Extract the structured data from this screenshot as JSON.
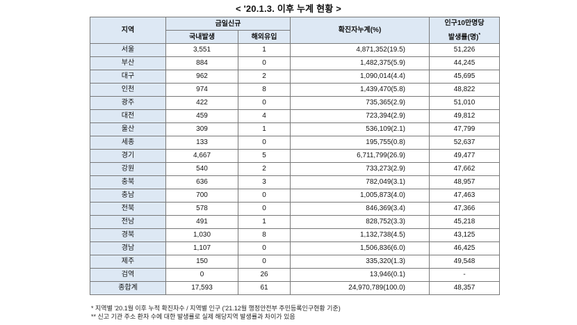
{
  "title": "< '20.1.3. 이후 누계 현황 >",
  "header": {
    "region": "지역",
    "today_new": "금일신규",
    "domestic": "국내발생",
    "overseas": "해외유입",
    "cumulative": "확진자누계(%)",
    "per100k_line1": "인구10만명당",
    "per100k_line2": "발생률(명)",
    "per100k_mark": "*"
  },
  "rows": [
    {
      "region": "서울",
      "domestic": "3,551",
      "overseas": "1",
      "cumulative": "4,871,352(19.5)",
      "rate": "51,226"
    },
    {
      "region": "부산",
      "domestic": "884",
      "overseas": "0",
      "cumulative": "1,482,375(5.9)",
      "rate": "44,245"
    },
    {
      "region": "대구",
      "domestic": "962",
      "overseas": "2",
      "cumulative": "1,090,014(4.4)",
      "rate": "45,695"
    },
    {
      "region": "인천",
      "domestic": "974",
      "overseas": "8",
      "cumulative": "1,439,470(5.8)",
      "rate": "48,822"
    },
    {
      "region": "광주",
      "domestic": "422",
      "overseas": "0",
      "cumulative": "735,365(2.9)",
      "rate": "51,010"
    },
    {
      "region": "대전",
      "domestic": "459",
      "overseas": "4",
      "cumulative": "723,394(2.9)",
      "rate": "49,812"
    },
    {
      "region": "울산",
      "domestic": "309",
      "overseas": "1",
      "cumulative": "536,109(2.1)",
      "rate": "47,799"
    },
    {
      "region": "세종",
      "domestic": "133",
      "overseas": "0",
      "cumulative": "195,755(0.8)",
      "rate": "52,637"
    },
    {
      "region": "경기",
      "domestic": "4,667",
      "overseas": "5",
      "cumulative": "6,711,799(26.9)",
      "rate": "49,477"
    },
    {
      "region": "강원",
      "domestic": "540",
      "overseas": "2",
      "cumulative": "733,273(2.9)",
      "rate": "47,662"
    },
    {
      "region": "충북",
      "domestic": "636",
      "overseas": "3",
      "cumulative": "782,049(3.1)",
      "rate": "48,957"
    },
    {
      "region": "충남",
      "domestic": "700",
      "overseas": "0",
      "cumulative": "1,005,873(4.0)",
      "rate": "47,463"
    },
    {
      "region": "전북",
      "domestic": "578",
      "overseas": "0",
      "cumulative": "846,369(3.4)",
      "rate": "47,366"
    },
    {
      "region": "전남",
      "domestic": "491",
      "overseas": "1",
      "cumulative": "828,752(3.3)",
      "rate": "45,218"
    },
    {
      "region": "경북",
      "domestic": "1,030",
      "overseas": "8",
      "cumulative": "1,132,738(4.5)",
      "rate": "43,125"
    },
    {
      "region": "경남",
      "domestic": "1,107",
      "overseas": "0",
      "cumulative": "1,506,836(6.0)",
      "rate": "46,425"
    },
    {
      "region": "제주",
      "domestic": "150",
      "overseas": "0",
      "cumulative": "335,320(1.3)",
      "rate": "49,548"
    },
    {
      "region": "검역",
      "domestic": "0",
      "overseas": "26",
      "cumulative": "13,946(0.1)",
      "rate": "-"
    },
    {
      "region": "종합계",
      "domestic": "17,593",
      "overseas": "61",
      "cumulative": "24,970,789(100.0)",
      "rate": "48,357"
    }
  ],
  "notes": [
    "* 지역별 '20.1월 이후 누적 확진자수 / 지역별 인구 ('21.12월 행정안전부 주민등록인구현황 기준)",
    "** 신고 기관 주소 환자 수에 대한 발생률로 실제 해당지역 발생률과 차이가 있음"
  ],
  "colors": {
    "header_bg": "#dde8f4",
    "border": "#777777"
  }
}
